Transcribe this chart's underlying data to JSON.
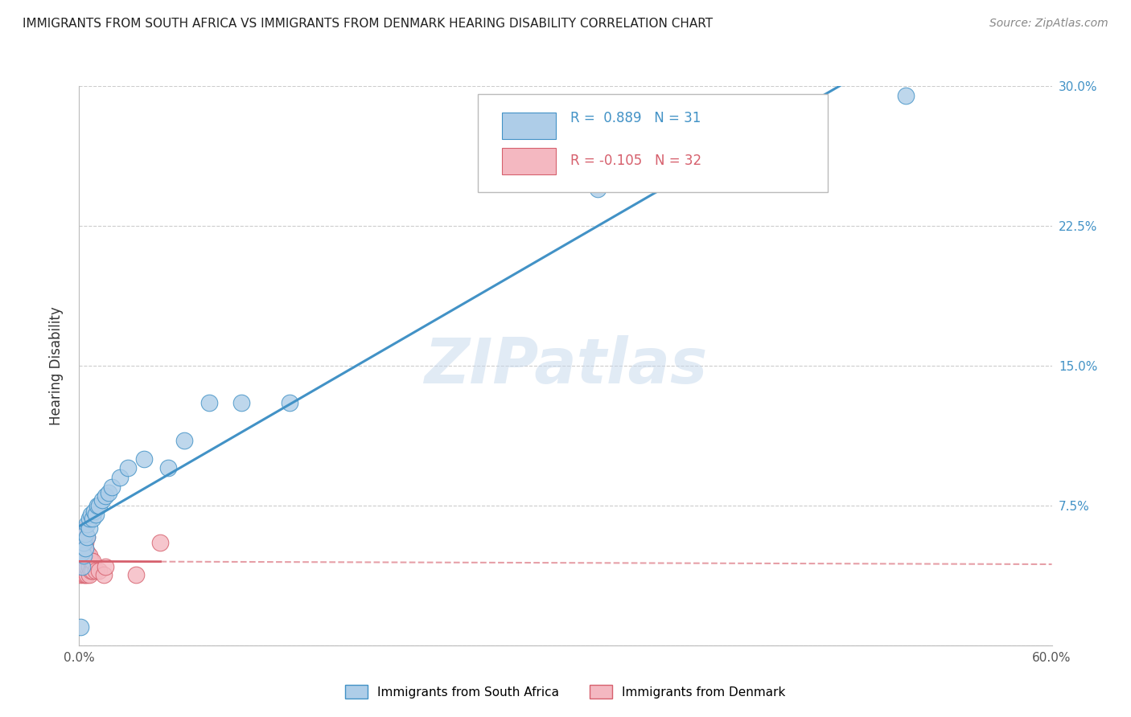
{
  "title": "IMMIGRANTS FROM SOUTH AFRICA VS IMMIGRANTS FROM DENMARK HEARING DISABILITY CORRELATION CHART",
  "source": "Source: ZipAtlas.com",
  "ylabel": "Hearing Disability",
  "xlim": [
    0.0,
    0.6
  ],
  "ylim": [
    0.0,
    0.3
  ],
  "R_blue": 0.889,
  "N_blue": 31,
  "R_pink": -0.105,
  "N_pink": 32,
  "blue_color": "#aecde8",
  "pink_color": "#f4b8c1",
  "blue_line_color": "#4292c6",
  "pink_line_color": "#d6606d",
  "watermark": "ZIPatlas",
  "legend_label_blue": "Immigrants from South Africa",
  "legend_label_pink": "Immigrants from Denmark",
  "sa_x": [
    0.001,
    0.002,
    0.002,
    0.003,
    0.003,
    0.004,
    0.004,
    0.005,
    0.005,
    0.006,
    0.006,
    0.007,
    0.008,
    0.009,
    0.01,
    0.011,
    0.012,
    0.014,
    0.016,
    0.018,
    0.02,
    0.025,
    0.03,
    0.04,
    0.055,
    0.065,
    0.08,
    0.1,
    0.13,
    0.32,
    0.51
  ],
  "sa_y": [
    0.01,
    0.042,
    0.05,
    0.048,
    0.055,
    0.052,
    0.06,
    0.058,
    0.065,
    0.063,
    0.068,
    0.07,
    0.068,
    0.072,
    0.07,
    0.075,
    0.075,
    0.078,
    0.08,
    0.082,
    0.085,
    0.09,
    0.095,
    0.1,
    0.095,
    0.11,
    0.13,
    0.13,
    0.13,
    0.245,
    0.295
  ],
  "dk_x": [
    0.001,
    0.001,
    0.002,
    0.002,
    0.002,
    0.002,
    0.003,
    0.003,
    0.003,
    0.003,
    0.003,
    0.004,
    0.004,
    0.004,
    0.004,
    0.005,
    0.005,
    0.005,
    0.005,
    0.006,
    0.006,
    0.006,
    0.007,
    0.007,
    0.008,
    0.008,
    0.01,
    0.012,
    0.015,
    0.016,
    0.035,
    0.05
  ],
  "dk_y": [
    0.038,
    0.048,
    0.04,
    0.042,
    0.05,
    0.06,
    0.038,
    0.04,
    0.045,
    0.055,
    0.062,
    0.038,
    0.042,
    0.048,
    0.055,
    0.038,
    0.042,
    0.05,
    0.058,
    0.038,
    0.042,
    0.048,
    0.04,
    0.045,
    0.04,
    0.045,
    0.04,
    0.04,
    0.038,
    0.042,
    0.038,
    0.055
  ]
}
